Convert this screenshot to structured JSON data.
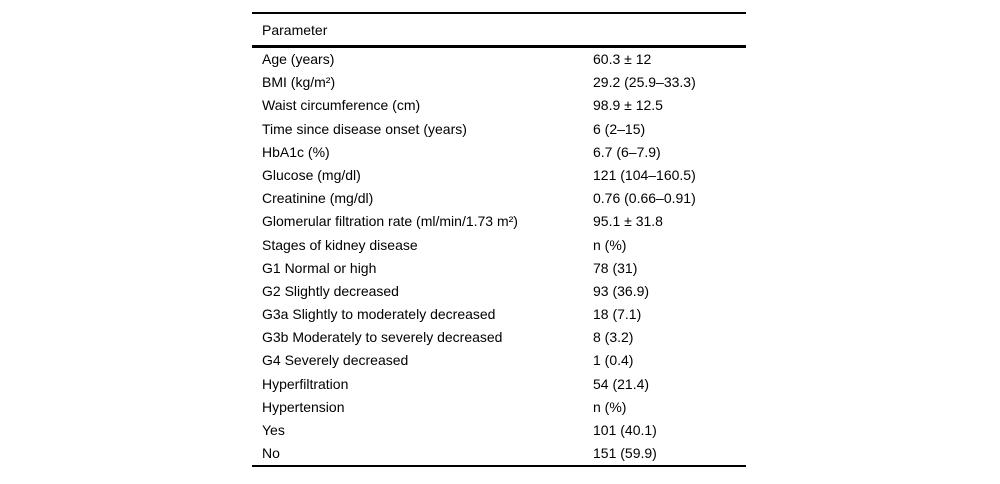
{
  "table": {
    "header": "Parameter",
    "rows": [
      {
        "param": "Age (years)",
        "value": "60.3 ± 12"
      },
      {
        "param": "BMI (kg/m²)",
        "value": "29.2 (25.9–33.3)"
      },
      {
        "param": "Waist circumference (cm)",
        "value": "98.9 ± 12.5"
      },
      {
        "param": "Time since disease onset (years)",
        "value": "6 (2–15)"
      },
      {
        "param": "HbA1c (%)",
        "value": "6.7 (6–7.9)"
      },
      {
        "param": "Glucose (mg/dl)",
        "value": "121 (104–160.5)"
      },
      {
        "param": "Creatinine (mg/dl)",
        "value": "0.76 (0.66–0.91)"
      },
      {
        "param": "Glomerular filtration rate (ml/min/1.73 m²)",
        "value": "95.1 ± 31.8"
      },
      {
        "param": "Stages of kidney disease",
        "value": "n (%)"
      },
      {
        "param": "G1 Normal or high",
        "value": "78 (31)"
      },
      {
        "param": "G2 Slightly decreased",
        "value": "93 (36.9)"
      },
      {
        "param": "G3a Slightly to moderately decreased",
        "value": "18 (7.1)"
      },
      {
        "param": "G3b Moderately to severely decreased",
        "value": "8 (3.2)"
      },
      {
        "param": "G4 Severely decreased",
        "value": "1 (0.4)"
      },
      {
        "param": "Hyperfiltration",
        "value": "54 (21.4)"
      },
      {
        "param": "Hypertension",
        "value": "n (%)"
      },
      {
        "param": "Yes",
        "value": "101 (40.1)"
      },
      {
        "param": "No",
        "value": "151 (59.9)"
      }
    ],
    "colors": {
      "text": "#000000",
      "rule": "#000000",
      "background": "#ffffff"
    }
  }
}
